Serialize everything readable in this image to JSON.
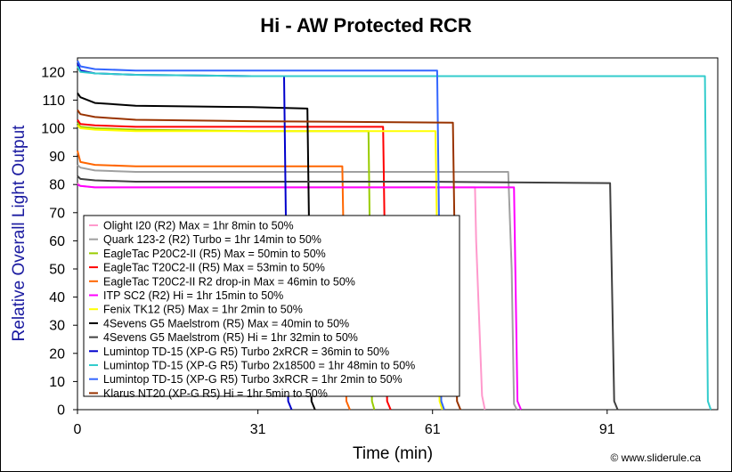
{
  "chart_data": {
    "type": "line",
    "title": "Hi - AW Protected RCR",
    "xlabel": "Time (min)",
    "ylabel": "Relative Overall Light Output",
    "xlim": [
      0,
      110
    ],
    "ylim": [
      0,
      125
    ],
    "xticks": [
      0,
      31,
      61,
      91
    ],
    "yticks": [
      0,
      10,
      20,
      30,
      40,
      50,
      60,
      70,
      80,
      90,
      100,
      110,
      120
    ],
    "grid": false,
    "legend_position": "lower-left",
    "credit": "© www.sliderule.ca",
    "series": [
      {
        "name": "Olight I20 (R2) Max = 1hr 8min to 50%",
        "color": "#ff99cc",
        "x": [
          0,
          0.5,
          3,
          10,
          30,
          60,
          68.3,
          68.5,
          69.5,
          70
        ],
        "y": [
          80.5,
          79.5,
          79,
          79,
          79,
          79,
          79,
          60,
          5,
          0
        ]
      },
      {
        "name": "Quark 123-2 (R2) Turbo = 1hr 14min to 50%",
        "color": "#a0a0a0",
        "x": [
          0,
          0.5,
          3,
          10,
          30,
          60,
          74,
          74.6,
          75,
          75.5
        ],
        "y": [
          87,
          86,
          85,
          84.5,
          84.5,
          84.5,
          84.5,
          50,
          2,
          0
        ]
      },
      {
        "name": "EagleTac P20C2-II (R5) Max = 50min to 50%",
        "color": "#99cc00",
        "x": [
          0,
          0.5,
          3,
          10,
          30,
          49,
          50,
          50.6,
          51
        ],
        "y": [
          102,
          100.5,
          100,
          99.5,
          99,
          99,
          99,
          3,
          0
        ]
      },
      {
        "name": "EagleTac T20C2-II (R5) Max = 53min to 50%",
        "color": "#ff0000",
        "x": [
          0,
          0.5,
          3,
          10,
          30,
          52.5,
          53.2,
          53.8
        ],
        "y": [
          103,
          101.5,
          101,
          100.5,
          100.5,
          100.5,
          3,
          0
        ]
      },
      {
        "name": "EagleTac T20C2-II R2 drop-in Max = 46min to 50%",
        "color": "#ff6600",
        "x": [
          0,
          0.5,
          3,
          10,
          30,
          45.5,
          46.2,
          46.8
        ],
        "y": [
          92,
          88,
          87,
          86.5,
          86.5,
          86.5,
          3,
          0
        ]
      },
      {
        "name": "ITP SC2 (R2) Hi = 1hr 15min to 50%",
        "color": "#ff00ff",
        "x": [
          0,
          0.5,
          3,
          10,
          30,
          60,
          75,
          75.6,
          76.2
        ],
        "y": [
          80,
          79.5,
          79,
          79,
          79,
          79,
          79,
          3,
          0
        ]
      },
      {
        "name": "Fenix TK12 (R5) Max = 1hr 2min to 50%",
        "color": "#ffff00",
        "x": [
          0,
          0.5,
          3,
          10,
          30,
          61.5,
          62.2,
          62.7
        ],
        "y": [
          101,
          100,
          99.5,
          99,
          99,
          99,
          3,
          0
        ]
      },
      {
        "name": "4Sevens G5 Maelstrom (R5) Max = 40min to 50%",
        "color": "#000000",
        "x": [
          0,
          0.5,
          3,
          10,
          30,
          39.5,
          40.2,
          40.8
        ],
        "y": [
          112.5,
          111,
          109,
          108,
          107.5,
          107,
          3,
          0
        ]
      },
      {
        "name": "4Sevens G5 Maelstrom (R5) Hi = 1hr 32min to 50%",
        "color": "#404040",
        "x": [
          0,
          0.5,
          3,
          10,
          30,
          60,
          91.5,
          92.2,
          92.8
        ],
        "y": [
          83,
          82,
          81.5,
          81,
          81,
          81,
          80.5,
          3,
          0
        ]
      },
      {
        "name": "Lumintop TD-15 (XP-G R5) Turbo 2xRCR = 36min to 50%",
        "color": "#0000cc",
        "x": [
          0,
          0.5,
          3,
          10,
          30,
          35.5,
          36.2,
          36.8
        ],
        "y": [
          123,
          120.5,
          119.5,
          119,
          118.5,
          118.5,
          3,
          0
        ]
      },
      {
        "name": "Lumintop TD-15 (XP-G R5) Turbo 2x18500 = 1hr 48min to 50%",
        "color": "#33cccc",
        "x": [
          0,
          0.5,
          3,
          10,
          30,
          60,
          90,
          107.8,
          108.3,
          108.8
        ],
        "y": [
          122,
          120,
          119.5,
          119,
          118.5,
          118.5,
          118.5,
          118.5,
          3,
          0
        ]
      },
      {
        "name": "Lumintop TD-15 (XP-G R5) Turbo 3xRCR = 1hr 2min to 50%",
        "color": "#3366ff",
        "x": [
          0,
          0.5,
          3,
          10,
          30,
          61.8,
          62.5,
          63
        ],
        "y": [
          124,
          122,
          121,
          120.5,
          120.5,
          120.5,
          3,
          0
        ]
      },
      {
        "name": "Klarus NT20 (XP-G R5) Hi = 1hr 5min to 50%",
        "color": "#993300",
        "x": [
          0,
          0.5,
          3,
          10,
          30,
          64.5,
          65.2,
          65.8
        ],
        "y": [
          106.5,
          105,
          104,
          103,
          102.5,
          102,
          3,
          0
        ]
      }
    ]
  }
}
